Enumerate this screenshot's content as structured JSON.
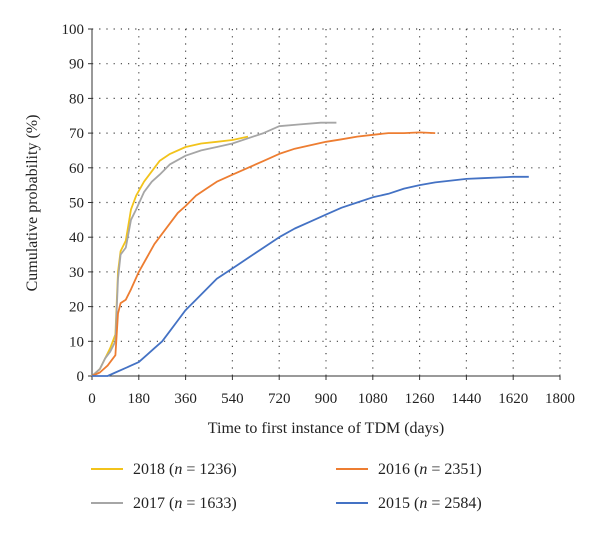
{
  "chart_data": {
    "type": "line",
    "title": "",
    "xlabel": "Time to first instance of TDM (days)",
    "ylabel": "Cumulative probability (%)",
    "xlim": [
      0,
      1800
    ],
    "ylim": [
      0,
      100
    ],
    "xticks": [
      0,
      180,
      360,
      540,
      720,
      900,
      1080,
      1260,
      1440,
      1620,
      1800
    ],
    "yticks": [
      0,
      10,
      20,
      30,
      40,
      50,
      60,
      70,
      80,
      90,
      100
    ],
    "grid": "dotted",
    "legend_placement": "bottom",
    "series": [
      {
        "name": "2018 (n = 1236)",
        "year": "2018",
        "n_label": "n",
        "n_value": "= 1236)",
        "color": "#F2C31B",
        "x": [
          0,
          30,
          50,
          70,
          90,
          100,
          110,
          130,
          150,
          170,
          200,
          230,
          260,
          300,
          360,
          420,
          480,
          540,
          600
        ],
        "y": [
          0,
          2,
          5,
          8,
          12,
          30,
          36,
          39,
          48,
          52,
          56,
          59,
          62,
          64,
          66,
          67,
          67.5,
          68,
          69
        ]
      },
      {
        "name": "2017 (n = 1633)",
        "year": "2017",
        "n_label": "n",
        "n_value": "= 1633)",
        "color": "#A6A6A6",
        "x": [
          0,
          30,
          50,
          70,
          90,
          100,
          110,
          130,
          150,
          170,
          200,
          230,
          260,
          300,
          360,
          420,
          480,
          540,
          600,
          660,
          720,
          800,
          880,
          940
        ],
        "y": [
          0,
          2,
          5,
          7,
          10,
          28,
          35,
          37,
          45,
          48,
          53,
          56,
          58,
          61,
          63.5,
          65,
          66,
          67,
          68.5,
          70,
          72,
          72.5,
          73,
          73
        ]
      },
      {
        "name": "2016 (n = 2351)",
        "year": "2016",
        "n_label": "n",
        "n_value": "= 2351)",
        "color": "#ED7D31",
        "x": [
          0,
          30,
          60,
          90,
          100,
          110,
          130,
          150,
          180,
          210,
          240,
          270,
          300,
          330,
          360,
          400,
          440,
          480,
          540,
          600,
          660,
          720,
          780,
          840,
          900,
          960,
          1020,
          1080,
          1140,
          1200,
          1260,
          1320
        ],
        "y": [
          0,
          1,
          3,
          6,
          18,
          21,
          22,
          25,
          30,
          34,
          38,
          41,
          44,
          47,
          49,
          52,
          54,
          56,
          58,
          60,
          62,
          64,
          65.5,
          66.5,
          67.5,
          68.2,
          69,
          69.5,
          70,
          70,
          70.2,
          70
        ]
      },
      {
        "name": "2015 (n = 2584)",
        "year": "2015",
        "n_label": "n",
        "n_value": "= 2584)",
        "color": "#4472C4",
        "x": [
          0,
          60,
          90,
          120,
          150,
          180,
          210,
          240,
          270,
          300,
          330,
          360,
          400,
          440,
          480,
          520,
          560,
          600,
          660,
          720,
          780,
          840,
          900,
          960,
          1020,
          1080,
          1140,
          1200,
          1260,
          1320,
          1380,
          1440,
          1500,
          1560,
          1620,
          1680
        ],
        "y": [
          0,
          0,
          1,
          2,
          3,
          4,
          6,
          8,
          10,
          13,
          16,
          19,
          22,
          25,
          28,
          30,
          32,
          34,
          37,
          40,
          42.5,
          44.5,
          46.5,
          48.5,
          50,
          51.5,
          52.5,
          54,
          55,
          55.8,
          56.3,
          56.8,
          57,
          57.2,
          57.4,
          57.4
        ]
      }
    ]
  }
}
